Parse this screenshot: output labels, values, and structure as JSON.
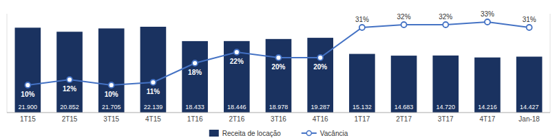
{
  "chart_data": {
    "type": "bar",
    "categories": [
      "1T15",
      "2T15",
      "3T15",
      "4T15",
      "1T16",
      "2T16",
      "3T16",
      "4T16",
      "1T17",
      "2T17",
      "3T17",
      "4T17",
      "Jan-18"
    ],
    "series": [
      {
        "name": "Receita de locação",
        "type": "bar",
        "color": "#1a3260",
        "values": [
          21900,
          20852,
          21705,
          22139,
          18433,
          18446,
          18978,
          19287,
          15132,
          14683,
          14720,
          14216,
          14427
        ],
        "value_labels": [
          "21.900",
          "20.852",
          "21.705",
          "22.139",
          "18.433",
          "18.446",
          "18.978",
          "19.287",
          "15.132",
          "14.683",
          "14.720",
          "14.216",
          "14.427"
        ]
      },
      {
        "name": "Vacância",
        "type": "line",
        "axis": "y2",
        "color": "#4472c4",
        "marker": "circle",
        "values": [
          10,
          12,
          10,
          11,
          18,
          22,
          20,
          20,
          31,
          32,
          32,
          33,
          31
        ],
        "value_labels": [
          "10%",
          "12%",
          "10%",
          "11%",
          "18%",
          "22%",
          "20%",
          "20%",
          "31%",
          "32%",
          "32%",
          "33%",
          "31%"
        ]
      }
    ],
    "ylim": [
      0,
      25500
    ],
    "y2lim": [
      0,
      36
    ],
    "tick_labels": "x",
    "data_labels": true,
    "legend": "bottom",
    "grid": false
  }
}
